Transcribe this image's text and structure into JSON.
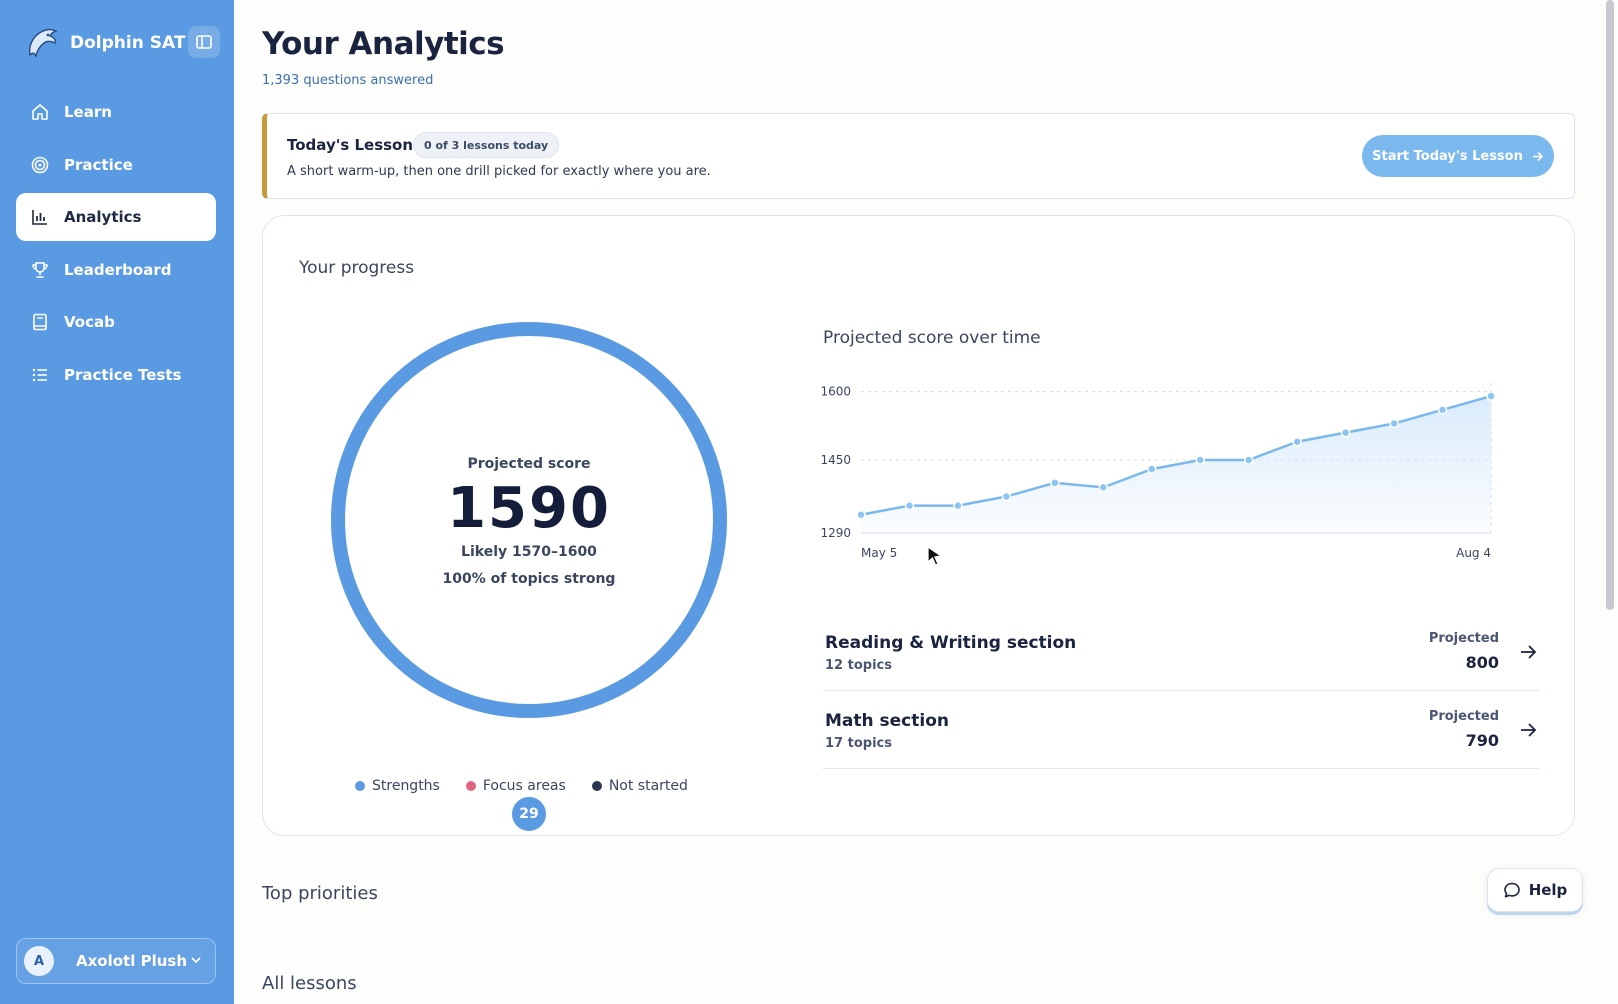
{
  "app": {
    "name": "Dolphin SAT",
    "icons": {
      "logo": "dolphin-logo",
      "collapse": "sidebar-toggle-icon"
    }
  },
  "sidebar": {
    "items": [
      {
        "label": "Learn",
        "icon": "home-icon",
        "active": false
      },
      {
        "label": "Practice",
        "icon": "target-icon",
        "active": false
      },
      {
        "label": "Analytics",
        "icon": "bar-chart-icon",
        "active": true
      },
      {
        "label": "Leaderboard",
        "icon": "trophy-icon",
        "active": false
      },
      {
        "label": "Vocab",
        "icon": "book-icon",
        "active": false
      },
      {
        "label": "Practice Tests",
        "icon": "list-icon",
        "active": false
      }
    ],
    "user": {
      "initial": "A",
      "name": "Axolotl Plush"
    }
  },
  "header": {
    "title": "Your Analytics",
    "subtitle": "1,393 questions answered"
  },
  "lesson": {
    "title": "Today's Lesson",
    "badge": "0 of 3 lessons today",
    "description": "A short warm-up, then one drill picked for exactly where you are.",
    "button": "Start Today's Lesson"
  },
  "progress": {
    "heading": "Your progress",
    "ring": {
      "label": "Projected score",
      "score": "1590",
      "likely": "Likely 1570–1600",
      "strong": "100% of topics strong",
      "badge": "29",
      "strength_fraction": 1.0
    },
    "legend": [
      {
        "label": "Strengths",
        "color": "#5a9ae2"
      },
      {
        "label": "Focus areas",
        "color": "#e0657e"
      },
      {
        "label": "Not started",
        "color": "#2b3650"
      }
    ],
    "sections": [
      {
        "name": "Reading & Writing section",
        "topics": "12 topics",
        "proj_label": "Projected",
        "proj_value": "800"
      },
      {
        "name": "Math section",
        "topics": "17 topics",
        "proj_label": "Projected",
        "proj_value": "790"
      }
    ]
  },
  "chart_data": {
    "type": "area",
    "title": "Projected score over time",
    "x_labels": {
      "first": "May 5",
      "last": "Aug 4"
    },
    "y_ticks": [
      1290,
      1450,
      1600
    ],
    "ylim": [
      1290,
      1610
    ],
    "grid": true,
    "series": [
      {
        "values": [
          1330,
          1350,
          1350,
          1370,
          1400,
          1390,
          1430,
          1450,
          1450,
          1490,
          1510,
          1530,
          1560,
          1590
        ]
      }
    ],
    "colors": {
      "line": "#7ab8ee",
      "fill": "#d6e9fb",
      "point": "#8cc4f2"
    }
  },
  "footer": {
    "top_priorities": "Top priorities",
    "all_lessons": "All lessons",
    "help": "Help"
  }
}
